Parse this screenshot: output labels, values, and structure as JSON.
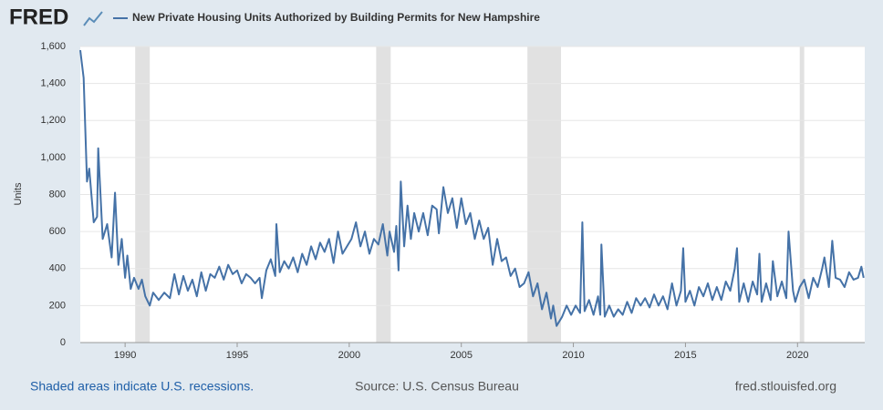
{
  "logo": "FRED",
  "footer": {
    "recession_note": "Shaded areas indicate U.S. recessions.",
    "source": "Source: U.S. Census Bureau",
    "site": "fred.stlouisfed.org"
  },
  "chart_data": {
    "type": "line",
    "ylabel": "Units",
    "xlim": [
      1988,
      2023
    ],
    "xticks": [
      1990,
      1995,
      2000,
      2005,
      2010,
      2015,
      2020
    ],
    "ylim": [
      0,
      1600
    ],
    "yticks": [
      0,
      200,
      400,
      600,
      800,
      {
        "value": 1000,
        "label": "1,000"
      },
      {
        "value": 1200,
        "label": "1,200"
      },
      {
        "value": 1400,
        "label": "1,400"
      },
      {
        "value": 1600,
        "label": "1,600"
      }
    ],
    "grid": true,
    "recessions": [
      [
        1990.45,
        1991.1
      ],
      [
        2001.2,
        2001.85
      ],
      [
        2007.95,
        2009.45
      ],
      [
        2020.1,
        2020.3
      ]
    ],
    "recession_color": "#e1e1e1",
    "x": [
      1988.0,
      1988.15,
      1988.3,
      1988.4,
      1988.6,
      1988.75,
      1988.8,
      1989.0,
      1989.2,
      1989.4,
      1989.55,
      1989.7,
      1989.85,
      1990.0,
      1990.1,
      1990.25,
      1990.4,
      1990.6,
      1990.75,
      1990.9,
      1991.1,
      1991.25,
      1991.5,
      1991.75,
      1992.0,
      1992.2,
      1992.4,
      1992.6,
      1992.8,
      1993.0,
      1993.2,
      1993.4,
      1993.6,
      1993.8,
      1994.0,
      1994.2,
      1994.4,
      1994.6,
      1994.8,
      1995.0,
      1995.2,
      1995.4,
      1995.6,
      1995.8,
      1996.0,
      1996.1,
      1996.3,
      1996.5,
      1996.7,
      1996.75,
      1996.9,
      1997.1,
      1997.3,
      1997.5,
      1997.7,
      1997.9,
      1998.1,
      1998.3,
      1998.5,
      1998.7,
      1998.9,
      1999.1,
      1999.3,
      1999.5,
      1999.7,
      1999.9,
      2000.1,
      2000.3,
      2000.5,
      2000.7,
      2000.9,
      2001.1,
      2001.3,
      2001.5,
      2001.7,
      2001.8,
      2002.0,
      2002.1,
      2002.2,
      2002.3,
      2002.45,
      2002.6,
      2002.75,
      2002.9,
      2003.1,
      2003.3,
      2003.5,
      2003.7,
      2003.9,
      2004.0,
      2004.2,
      2004.4,
      2004.6,
      2004.8,
      2005.0,
      2005.2,
      2005.4,
      2005.6,
      2005.8,
      2006.0,
      2006.2,
      2006.4,
      2006.6,
      2006.8,
      2007.0,
      2007.2,
      2007.4,
      2007.6,
      2007.8,
      2008.0,
      2008.2,
      2008.4,
      2008.6,
      2008.8,
      2009.0,
      2009.1,
      2009.25,
      2009.5,
      2009.7,
      2009.9,
      2010.1,
      2010.3,
      2010.4,
      2010.5,
      2010.7,
      2010.9,
      2011.1,
      2011.2,
      2011.25,
      2011.4,
      2011.6,
      2011.8,
      2012.0,
      2012.2,
      2012.4,
      2012.6,
      2012.8,
      2013.0,
      2013.2,
      2013.4,
      2013.6,
      2013.8,
      2014.0,
      2014.2,
      2014.4,
      2014.6,
      2014.8,
      2014.9,
      2015.0,
      2015.2,
      2015.4,
      2015.6,
      2015.8,
      2016.0,
      2016.2,
      2016.4,
      2016.6,
      2016.8,
      2017.0,
      2017.2,
      2017.3,
      2017.4,
      2017.6,
      2017.8,
      2018.0,
      2018.2,
      2018.3,
      2018.4,
      2018.6,
      2018.8,
      2018.9,
      2019.1,
      2019.3,
      2019.5,
      2019.6,
      2019.8,
      2019.9,
      2020.1,
      2020.3,
      2020.5,
      2020.7,
      2020.9,
      2021.1,
      2021.2,
      2021.4,
      2021.55,
      2021.7,
      2021.9,
      2022.1,
      2022.3,
      2022.5,
      2022.7,
      2022.85,
      2022.95
    ],
    "series": [
      {
        "name": "New Private Housing Units Authorized by Building Permits for New Hampshire",
        "color": "#4572a7",
        "values": [
          1580,
          1430,
          870,
          940,
          650,
          680,
          1050,
          560,
          640,
          460,
          810,
          420,
          560,
          350,
          470,
          290,
          350,
          290,
          340,
          250,
          200,
          270,
          230,
          270,
          240,
          370,
          260,
          360,
          280,
          340,
          250,
          380,
          280,
          370,
          350,
          410,
          340,
          420,
          370,
          390,
          320,
          370,
          350,
          320,
          350,
          240,
          390,
          450,
          360,
          640,
          380,
          440,
          400,
          460,
          380,
          480,
          420,
          520,
          450,
          540,
          490,
          560,
          430,
          600,
          480,
          520,
          560,
          650,
          520,
          600,
          480,
          560,
          530,
          640,
          470,
          600,
          490,
          630,
          390,
          870,
          520,
          740,
          560,
          700,
          600,
          700,
          580,
          740,
          720,
          590,
          840,
          700,
          780,
          620,
          780,
          640,
          700,
          560,
          660,
          560,
          620,
          420,
          560,
          440,
          460,
          360,
          400,
          300,
          320,
          380,
          250,
          320,
          180,
          270,
          130,
          200,
          90,
          140,
          200,
          150,
          200,
          160,
          650,
          170,
          230,
          150,
          250,
          150,
          530,
          140,
          200,
          140,
          180,
          150,
          220,
          160,
          240,
          200,
          240,
          190,
          260,
          200,
          250,
          180,
          320,
          200,
          280,
          510,
          220,
          280,
          200,
          300,
          250,
          320,
          230,
          300,
          230,
          330,
          280,
          400,
          510,
          220,
          320,
          220,
          330,
          260,
          480,
          220,
          320,
          230,
          440,
          250,
          330,
          240,
          600,
          280,
          220,
          300,
          340,
          240,
          350,
          300,
          400,
          460,
          300,
          550,
          350,
          340,
          300,
          380,
          340,
          350,
          410,
          350
        ]
      }
    ]
  }
}
